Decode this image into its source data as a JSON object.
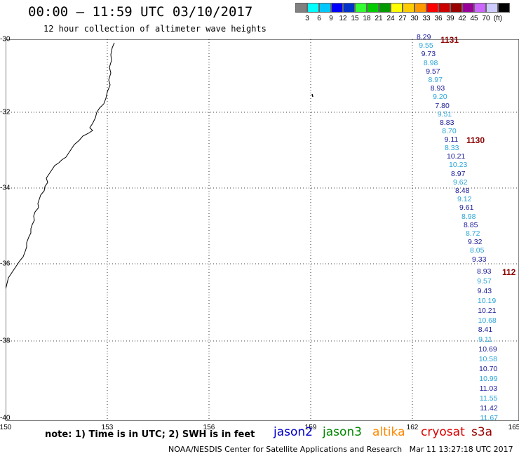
{
  "header": {
    "title": "00:00 – 11:59 UTC 03/10/2017",
    "subtitle": "12 hour collection of altimeter wave heights"
  },
  "color_scale": {
    "colors": [
      "#808080",
      "#00ffff",
      "#00c8ff",
      "#0000ff",
      "#0033cc",
      "#33ff33",
      "#00cc00",
      "#009900",
      "#ffff00",
      "#ffcc00",
      "#ff9900",
      "#ff0000",
      "#cc0000",
      "#990000",
      "#990099",
      "#cc66ff",
      "#ccccff",
      "#000000"
    ],
    "labels": [
      "3",
      "6",
      "9",
      "12",
      "15",
      "18",
      "21",
      "24",
      "27",
      "30",
      "33",
      "36",
      "39",
      "42",
      "45",
      "70",
      "(ft)"
    ]
  },
  "axes": {
    "lat_labels": [
      "-30",
      "-32",
      "-34",
      "-36",
      "-38",
      "-40"
    ],
    "lon_labels": [
      "150",
      "153",
      "156",
      "159",
      "162",
      "165"
    ]
  },
  "tracks": [
    {
      "orbit": "1131",
      "values": [
        "8.29",
        "9.55",
        "9.73",
        "8.98",
        "9.57",
        "8.97",
        "8.93",
        "9.20",
        "7.80",
        "9.51",
        "8.83",
        "8.70",
        "9.11"
      ]
    },
    {
      "orbit": "1130",
      "values": [
        "8.33",
        "10.21",
        "10.23",
        "8.97",
        "9.62",
        "8.48",
        "9.12",
        "9.61",
        "8.98",
        "8.85",
        "8.72",
        "9.32",
        "8.05",
        "9.33"
      ]
    },
    {
      "orbit": "112",
      "values": [
        "8.93",
        "9.57",
        "9.43",
        "10.19",
        "10.21",
        "10.68",
        "8.41",
        "9.11",
        "10.69",
        "10.58",
        "10.70",
        "10.99",
        "11.03",
        "11.55",
        "11.42",
        "11.67"
      ]
    }
  ],
  "footer": {
    "note": "note: 1) Time is in UTC; 2) SWH is in feet",
    "legend": [
      {
        "name": "jason2",
        "color": "#0000cc"
      },
      {
        "name": "jason3",
        "color": "#008800"
      },
      {
        "name": "altika",
        "color": "#ff8800"
      },
      {
        "name": "cryosat",
        "color": "#dd0000"
      },
      {
        "name": "s3a",
        "color": "#990000"
      }
    ],
    "credit": "NOAA/NESDIS Center for Satellite Applications and Research   Mar 11 13:27:18 UTC 2017"
  }
}
